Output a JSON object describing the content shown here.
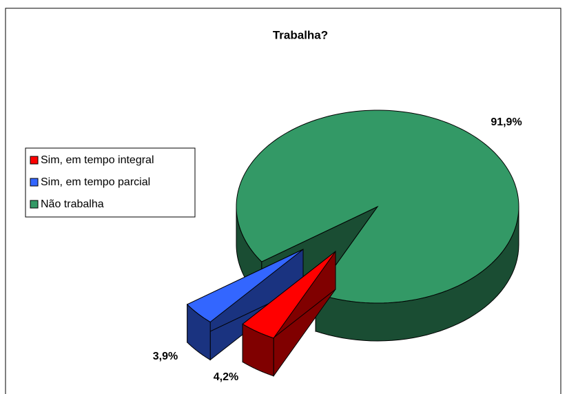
{
  "chart_data": {
    "type": "pie3d",
    "title": "Trabalha?",
    "categories": [
      "Sim, em tempo integral",
      "Sim, em tempo parcial",
      "Não trabalha"
    ],
    "values": [
      4.2,
      3.9,
      91.9
    ],
    "value_labels": [
      "4,2%",
      "3,9%",
      "91,9%"
    ],
    "colors": [
      "#ff0000",
      "#3366ff",
      "#339966"
    ],
    "legend": "left"
  }
}
